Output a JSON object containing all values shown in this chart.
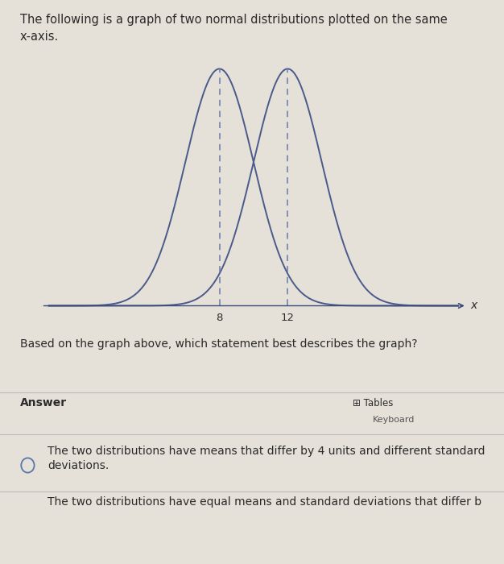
{
  "header_text": "The following is a graph of two normal distributions plotted on the same\nx-axis.",
  "question_text": "Based on the graph above, which statement best describes the graph?",
  "answer_label": "Answer",
  "answer_option1": "The two distributions have means that differ by 4 units and different standard\ndeviations.",
  "answer_option2": "The two distributions have equal means and standard deviations that differ b",
  "mu1": 8,
  "mu2": 12,
  "sigma1": 2.0,
  "sigma2": 2.0,
  "curve_color": "#4a5a8a",
  "bg_color": "#e5e1d8",
  "x_label": "x",
  "x_tick_labels": [
    "8",
    "12"
  ],
  "x_tick_positions": [
    8,
    12
  ],
  "dashed_color": "#6a7aaa",
  "axis_color": "#3a4a7a",
  "text_color": "#2a2a2a",
  "light_text_color": "#555555",
  "header_fontsize": 10.5,
  "question_fontsize": 10.0,
  "answer_fontsize": 10.0,
  "divider_color": "#bbbbbb"
}
